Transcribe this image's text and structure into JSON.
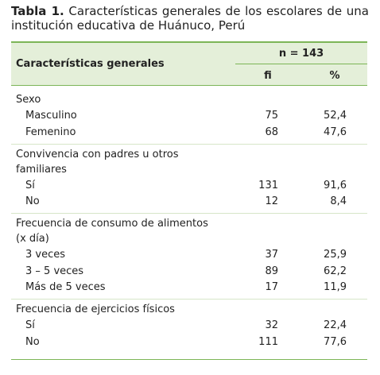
{
  "title": {
    "label": "Tabla 1.",
    "text": "Características generales de los escolares de una institución educativa de Huánuco, Perú"
  },
  "table": {
    "header": {
      "characteristics": "Características generales",
      "n": "n = 143",
      "fi": "fi",
      "percent": "%"
    },
    "groups": [
      {
        "label": [
          "Sexo"
        ],
        "rows": [
          {
            "label": "Masculino",
            "fi": "75",
            "percent": "52,4"
          },
          {
            "label": "Femenino",
            "fi": "68",
            "percent": "47,6"
          }
        ]
      },
      {
        "label": [
          "Convivencia con padres u otros",
          "familiares"
        ],
        "rows": [
          {
            "label": "Sí",
            "fi": "131",
            "percent": "91,6"
          },
          {
            "label": "No",
            "fi": "12",
            "percent": "8,4"
          }
        ]
      },
      {
        "label": [
          "Frecuencia de consumo de alimentos",
          "(x día)"
        ],
        "rows": [
          {
            "label": "3 veces",
            "fi": "37",
            "percent": "25,9"
          },
          {
            "label": "3 – 5 veces",
            "fi": "89",
            "percent": "62,2"
          },
          {
            "label": "Más de 5 veces",
            "fi": "17",
            "percent": "11,9"
          }
        ]
      },
      {
        "label": [
          "Frecuencia de ejercicios físicos"
        ],
        "rows": [
          {
            "label": "Sí",
            "fi": "32",
            "percent": "22,4"
          },
          {
            "label": "No",
            "fi": "111",
            "percent": "77,6"
          }
        ]
      }
    ]
  }
}
